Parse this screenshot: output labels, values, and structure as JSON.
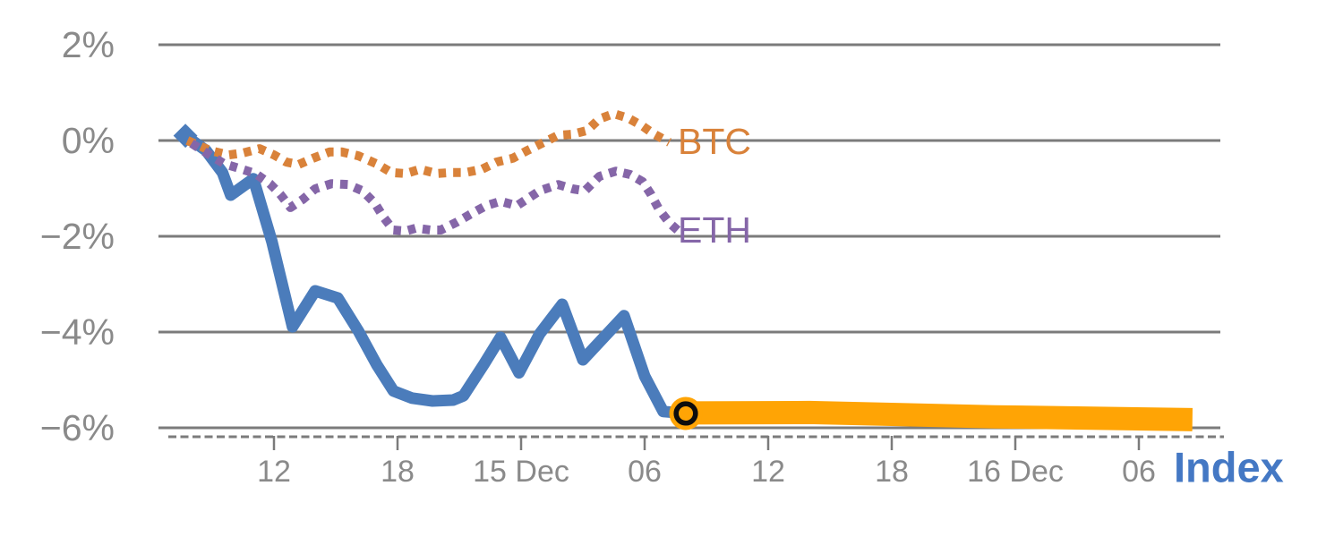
{
  "chart_data": {
    "type": "line",
    "title": "",
    "x_axis": {
      "axis_label": "Index",
      "tick_labels": [
        "12",
        "18",
        "15 Dec",
        "06",
        "12",
        "18",
        "16 Dec",
        "06"
      ],
      "tick_hours": [
        12,
        18,
        24,
        30,
        36,
        42,
        48,
        54
      ],
      "unit": "time of day, 14-16 Dec",
      "range_hours": [
        6.3,
        58.2
      ],
      "grid": false
    },
    "y_axis": {
      "tick_labels": [
        "2%",
        "0%",
        "−2%",
        "−4%",
        "−6%"
      ],
      "tick_values": [
        2,
        0,
        -2,
        -4,
        -6
      ],
      "unit": "percent change",
      "range": [
        -6.6,
        2.6
      ],
      "grid": true
    },
    "series": [
      {
        "name": "index-history",
        "label": "",
        "style": "solid",
        "color": "#4b7cbb",
        "width": 13,
        "points": [
          [
            7.7,
            0.1
          ],
          [
            8.7,
            -0.21
          ],
          [
            9.5,
            -0.67
          ],
          [
            9.9,
            -1.14
          ],
          [
            11.0,
            -0.8
          ],
          [
            11.9,
            -2.11
          ],
          [
            12.9,
            -3.89
          ],
          [
            14.0,
            -3.14
          ],
          [
            15.1,
            -3.29
          ],
          [
            16.1,
            -3.98
          ],
          [
            17.0,
            -4.69
          ],
          [
            17.8,
            -5.23
          ],
          [
            18.7,
            -5.38
          ],
          [
            19.7,
            -5.44
          ],
          [
            20.7,
            -5.42
          ],
          [
            21.2,
            -5.33
          ],
          [
            22.2,
            -4.67
          ],
          [
            23.0,
            -4.11
          ],
          [
            23.9,
            -4.85
          ],
          [
            24.9,
            -4.04
          ],
          [
            26.0,
            -3.42
          ],
          [
            27.0,
            -4.58
          ],
          [
            29.0,
            -3.66
          ],
          [
            30.0,
            -4.92
          ],
          [
            30.9,
            -5.66
          ],
          [
            32.0,
            -5.7
          ]
        ]
      },
      {
        "name": "index-forecast",
        "label": "",
        "style": "solid-thick",
        "color": "#ffa405",
        "width": 26,
        "points": [
          [
            32.0,
            -5.69
          ],
          [
            38.0,
            -5.68
          ],
          [
            47.0,
            -5.77
          ],
          [
            56.6,
            -5.83
          ]
        ]
      },
      {
        "name": "BTC",
        "label": "BTC",
        "style": "dotted",
        "color": "#d9823a",
        "width": 10,
        "points": [
          [
            7.8,
            0.0
          ],
          [
            8.9,
            -0.21
          ],
          [
            9.8,
            -0.3
          ],
          [
            10.5,
            -0.26
          ],
          [
            11.3,
            -0.17
          ],
          [
            12.0,
            -0.3
          ],
          [
            12.6,
            -0.45
          ],
          [
            13.2,
            -0.5
          ],
          [
            13.9,
            -0.37
          ],
          [
            14.7,
            -0.24
          ],
          [
            15.3,
            -0.24
          ],
          [
            16.1,
            -0.32
          ],
          [
            17.0,
            -0.49
          ],
          [
            17.7,
            -0.67
          ],
          [
            18.4,
            -0.69
          ],
          [
            19.1,
            -0.6
          ],
          [
            19.9,
            -0.69
          ],
          [
            20.6,
            -0.67
          ],
          [
            21.3,
            -0.67
          ],
          [
            22.1,
            -0.6
          ],
          [
            22.8,
            -0.45
          ],
          [
            23.6,
            -0.37
          ],
          [
            24.3,
            -0.21
          ],
          [
            25.1,
            -0.04
          ],
          [
            25.8,
            0.11
          ],
          [
            26.5,
            0.13
          ],
          [
            27.2,
            0.21
          ],
          [
            27.8,
            0.45
          ],
          [
            28.5,
            0.56
          ],
          [
            29.2,
            0.47
          ],
          [
            29.9,
            0.3
          ],
          [
            30.4,
            0.15
          ],
          [
            31.2,
            -0.04
          ]
        ]
      },
      {
        "name": "ETH",
        "label": "ETH",
        "style": "dotted",
        "color": "#8566a8",
        "width": 10,
        "points": [
          [
            8.0,
            -0.06
          ],
          [
            8.8,
            -0.28
          ],
          [
            9.6,
            -0.49
          ],
          [
            10.3,
            -0.58
          ],
          [
            11.1,
            -0.69
          ],
          [
            11.8,
            -0.9
          ],
          [
            12.3,
            -1.12
          ],
          [
            12.8,
            -1.4
          ],
          [
            13.4,
            -1.23
          ],
          [
            14.0,
            -1.01
          ],
          [
            14.8,
            -0.9
          ],
          [
            15.6,
            -0.92
          ],
          [
            16.3,
            -1.05
          ],
          [
            16.9,
            -1.31
          ],
          [
            17.3,
            -1.59
          ],
          [
            17.8,
            -1.87
          ],
          [
            18.4,
            -1.89
          ],
          [
            18.9,
            -1.83
          ],
          [
            19.6,
            -1.87
          ],
          [
            20.1,
            -1.87
          ],
          [
            20.9,
            -1.7
          ],
          [
            21.5,
            -1.55
          ],
          [
            22.3,
            -1.36
          ],
          [
            23.0,
            -1.27
          ],
          [
            23.8,
            -1.36
          ],
          [
            24.9,
            -1.05
          ],
          [
            25.8,
            -0.92
          ],
          [
            26.5,
            -1.01
          ],
          [
            27.1,
            -1.05
          ],
          [
            27.8,
            -0.75
          ],
          [
            28.6,
            -0.64
          ],
          [
            29.3,
            -0.71
          ],
          [
            29.9,
            -0.86
          ],
          [
            30.3,
            -1.12
          ],
          [
            30.7,
            -1.44
          ],
          [
            31.2,
            -1.72
          ],
          [
            31.7,
            -1.91
          ]
        ]
      }
    ],
    "annotations": {
      "forecast_start_marker": {
        "h": 32.0,
        "pct": -5.7
      },
      "series_start_marker": {
        "h": 7.7,
        "pct": 0.1
      }
    },
    "legend_position": "end-of-line labels",
    "colors": {
      "grid": "#7b7b7b",
      "axis_text": "#8a8a8a",
      "index_label": "#4478c4",
      "marker_ring": "#0d0d0d",
      "background": "#ffffff"
    }
  }
}
